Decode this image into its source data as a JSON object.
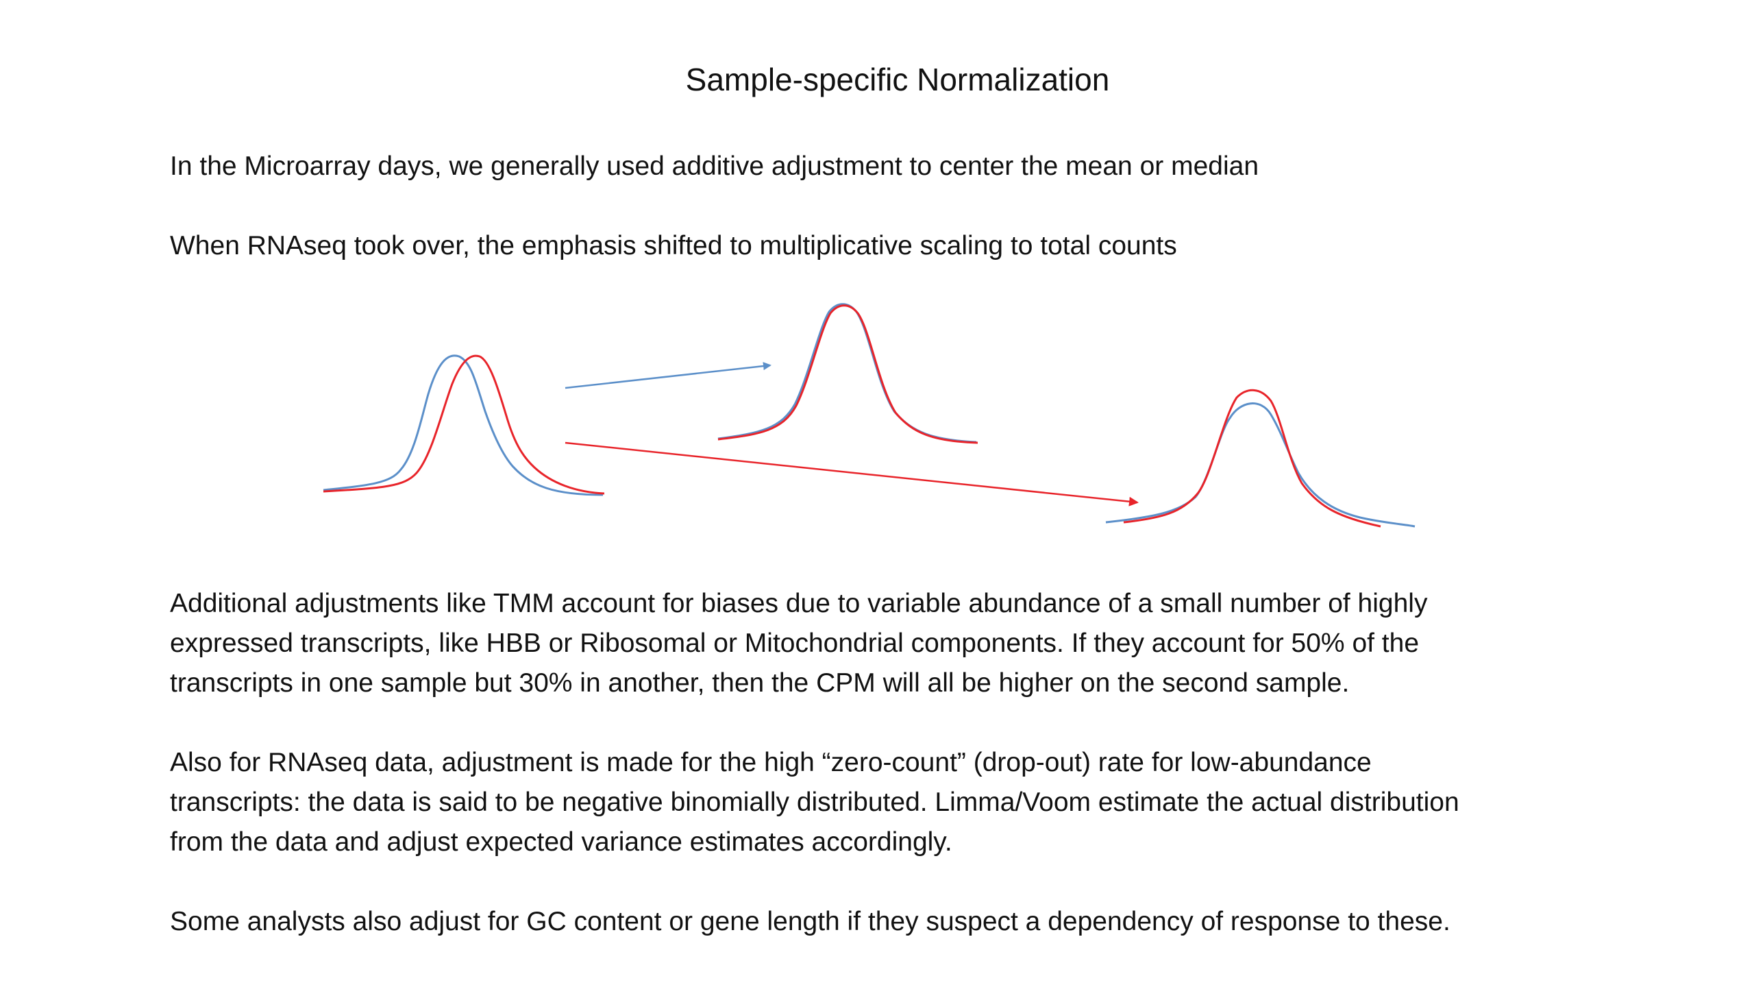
{
  "title": "Sample-specific Normalization",
  "paragraphs": {
    "p1": [
      "In the Microarray days, we generally used additive adjustment to center the mean or median"
    ],
    "p2": [
      "When RNAseq took over, the emphasis shifted to multiplicative scaling to total counts"
    ],
    "p3": [
      "Additional adjustments like TMM account for biases due to variable abundance of a small number of highly",
      "expressed transcripts, like HBB or Ribosomal or Mitochondrial components.  If they account for 50% of the",
      "transcripts in one sample but 30% in another, then the CPM will all be higher on the second sample."
    ],
    "p4": [
      "Also for RNAseq data, adjustment is made for the high “zero-count” (drop-out) rate for low-abundance",
      "transcripts: the data is said to be negative binomially distributed.  Limma/Voom estimate the actual distribution",
      "from the data and adjust expected variance estimates accordingly."
    ],
    "p5": [
      "Some analysts also adjust for GC content or gene length if they suspect a dependency of response to these."
    ]
  },
  "colors": {
    "blue_curve": "#5b8fc9",
    "red_curve": "#e8242a",
    "text": "#111111",
    "background": "#ffffff"
  },
  "diagram_icons": [
    "bell-curve",
    "arrow-right"
  ]
}
